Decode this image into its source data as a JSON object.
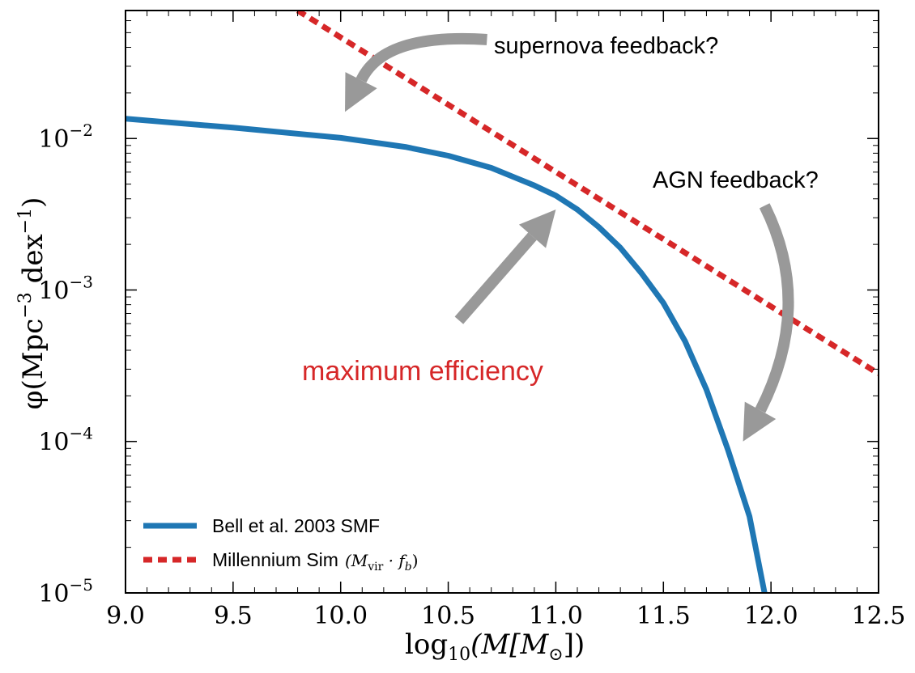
{
  "chart_data": {
    "type": "line",
    "title": "",
    "xlabel_base": "log",
    "xlabel_sub": "10",
    "xlabel_rest": "(M[M",
    "xlabel_sun": "⊙",
    "xlabel_close": "])",
    "ylabel_phi": "φ(Mpc",
    "ylabel_exp1": "−3",
    "ylabel_mid": " dex",
    "ylabel_exp2": "−1",
    "ylabel_close": ")",
    "xlim": [
      9.0,
      12.5
    ],
    "ylim": [
      1e-05,
      0.07
    ],
    "yscale": "log",
    "x_ticks": [
      {
        "value": 9.0,
        "label": "9.0"
      },
      {
        "value": 9.5,
        "label": "9.5"
      },
      {
        "value": 10.0,
        "label": "10.0"
      },
      {
        "value": 10.5,
        "label": "10.5"
      },
      {
        "value": 11.0,
        "label": "11.0"
      },
      {
        "value": 11.5,
        "label": "11.5"
      },
      {
        "value": 12.0,
        "label": "12.0"
      },
      {
        "value": 12.5,
        "label": "12.5"
      }
    ],
    "y_ticks": [
      {
        "value": 0.01,
        "base": "10",
        "exp": "−2"
      },
      {
        "value": 0.001,
        "base": "10",
        "exp": "−3"
      },
      {
        "value": 0.0001,
        "base": "10",
        "exp": "−4"
      },
      {
        "value": 1e-05,
        "base": "10",
        "exp": "−5"
      }
    ],
    "series": [
      {
        "name": "Bell et al. 2003 SMF",
        "style": "solid",
        "color": "#1f77b4",
        "x": [
          9.0,
          9.5,
          10.0,
          10.3,
          10.5,
          10.7,
          10.9,
          11.0,
          11.1,
          11.2,
          11.3,
          11.4,
          11.5,
          11.6,
          11.7,
          11.8,
          11.9,
          11.97
        ],
        "y": [
          0.0135,
          0.0118,
          0.0101,
          0.0088,
          0.0077,
          0.0064,
          0.0049,
          0.0042,
          0.0034,
          0.0026,
          0.0019,
          0.00128,
          0.00082,
          0.00046,
          0.00022,
          8.8e-05,
          3.2e-05,
          1e-05
        ]
      },
      {
        "name": "Millennium Sim",
        "name_math": "(M",
        "name_sub": "vir",
        "name_mid": " · f",
        "name_sub2": "b",
        "name_close": ")",
        "style": "dashed",
        "color": "#d62728",
        "x": [
          9.8,
          12.5
        ],
        "y": [
          0.07,
          0.00028
        ]
      }
    ],
    "annotations": [
      {
        "id": "supernova",
        "text": "supernova feedback?",
        "color": "#000000"
      },
      {
        "id": "agn",
        "text": "AGN feedback?",
        "color": "#000000"
      },
      {
        "id": "max",
        "text": "maximum efficiency",
        "color": "#d62728"
      }
    ],
    "arrow_color": "#999999",
    "legend_position": "lower-left",
    "grid": false
  }
}
